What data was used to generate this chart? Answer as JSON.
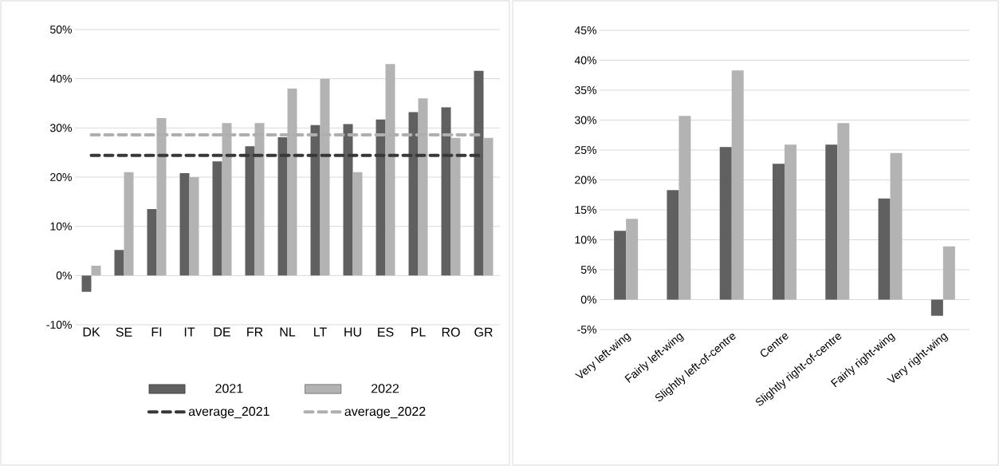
{
  "chart_data": [
    {
      "type": "bar",
      "categories": [
        "DK",
        "SE",
        "FI",
        "IT",
        "DE",
        "FR",
        "NL",
        "LT",
        "HU",
        "ES",
        "PL",
        "RO",
        "GR"
      ],
      "series": [
        {
          "name": "2021",
          "color": "#606060",
          "values": [
            -3.3,
            5.2,
            13.5,
            20.8,
            23.2,
            26.3,
            28.1,
            30.6,
            30.8,
            31.7,
            33.2,
            34.2,
            41.6
          ]
        },
        {
          "name": "2022",
          "color": "#b3b3b3",
          "values": [
            2,
            21,
            32,
            20,
            31,
            31,
            38,
            40,
            21,
            43,
            36,
            28,
            28
          ]
        },
        {
          "name": "average_2021",
          "type": "line",
          "line_style": "dashed",
          "color": "#383838",
          "values": [
            24.4,
            24.4,
            24.4,
            24.4,
            24.4,
            24.4,
            24.4,
            24.4,
            24.4,
            24.4,
            24.4,
            24.4,
            24.4
          ]
        },
        {
          "name": "average_2022",
          "type": "line",
          "line_style": "dashed",
          "color": "#b0aeae",
          "values": [
            28.6,
            28.6,
            28.6,
            28.6,
            28.6,
            28.6,
            28.6,
            28.6,
            28.6,
            28.6,
            28.6,
            28.6,
            28.6
          ]
        }
      ],
      "ylim": [
        -10,
        50
      ],
      "yticks": [
        {
          "value": -10,
          "label": "-10%"
        },
        {
          "value": 0,
          "label": "0%"
        },
        {
          "value": 10,
          "label": "10%"
        },
        {
          "value": 20,
          "label": "20%"
        },
        {
          "value": 30,
          "label": "30%"
        },
        {
          "value": 40,
          "label": "40%"
        },
        {
          "value": 50,
          "label": "50%"
        }
      ],
      "grid": "y",
      "legend": "bottom",
      "marker": "none"
    },
    {
      "type": "bar",
      "categories": [
        "Very left-wing",
        "Fairly left-wing",
        "Slightly left-of-centre",
        "Centre",
        "Slightly right-of-centre",
        "Fairly right-wing",
        "Very right-wing"
      ],
      "series": [
        {
          "color": "#606060",
          "values": [
            11.5,
            18.3,
            25.5,
            22.7,
            25.9,
            16.9,
            -2.7
          ]
        },
        {
          "color": "#b3b3b3",
          "values": [
            13.5,
            30.7,
            38.3,
            25.9,
            29.5,
            24.5,
            8.9
          ]
        }
      ],
      "ylim": [
        -5,
        45
      ],
      "yticks": [
        {
          "value": -5,
          "label": "-5%"
        },
        {
          "value": 0,
          "label": "0%"
        },
        {
          "value": 5,
          "label": "5%"
        },
        {
          "value": 10,
          "label": "10%"
        },
        {
          "value": 15,
          "label": "15%"
        },
        {
          "value": 20,
          "label": "20%"
        },
        {
          "value": 25,
          "label": "25%"
        },
        {
          "value": 30,
          "label": "30%"
        },
        {
          "value": 35,
          "label": "35%"
        },
        {
          "value": 40,
          "label": "40%"
        },
        {
          "value": 45,
          "label": "45%"
        }
      ],
      "grid": "y",
      "legend": false
    }
  ]
}
